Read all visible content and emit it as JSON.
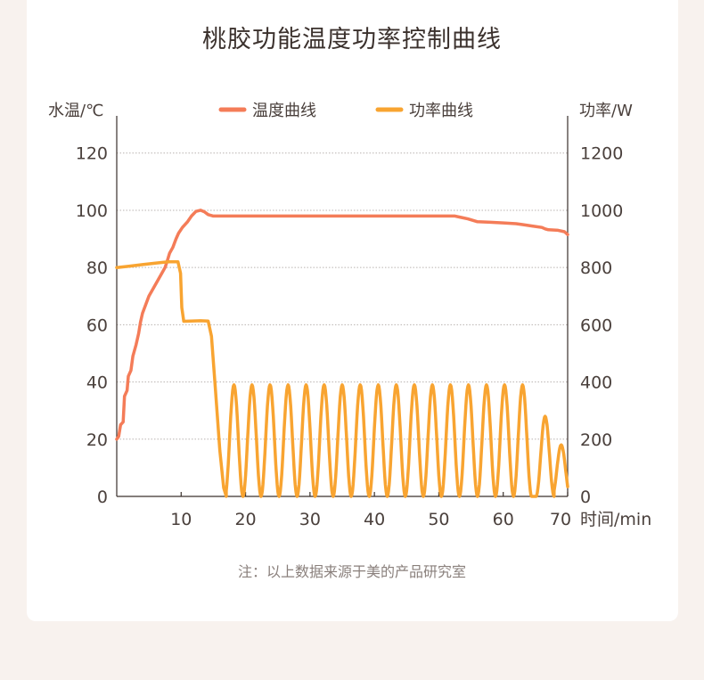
{
  "chart_data": {
    "type": "line",
    "title": "桃胶功能温度功率控制曲线",
    "y_left_label": "水温/℃",
    "y_right_label": "功率/W",
    "x_unit_label": "时间/min",
    "note": "注：以上数据来源于美的产品研究室",
    "x_range": [
      0,
      70
    ],
    "y_left_range": [
      0,
      133
    ],
    "y_right_range": [
      0,
      1330
    ],
    "x_ticks": [
      10,
      20,
      30,
      40,
      50,
      60,
      70
    ],
    "y_left_ticks": [
      0,
      20,
      40,
      60,
      80,
      100,
      120
    ],
    "y_right_ticks": [
      0,
      200,
      400,
      600,
      800,
      1000,
      1200
    ],
    "grid": true,
    "legend_position": "top-center",
    "series": [
      {
        "name": "温度曲线",
        "axis": "left",
        "color": "#f47c58",
        "points": [
          [
            0.0,
            20
          ],
          [
            0.3,
            21
          ],
          [
            0.6,
            25
          ],
          [
            1.0,
            26
          ],
          [
            1.2,
            35
          ],
          [
            1.6,
            37
          ],
          [
            1.8,
            42
          ],
          [
            2.2,
            44
          ],
          [
            2.5,
            49
          ],
          [
            3.0,
            53
          ],
          [
            3.4,
            57
          ],
          [
            3.7,
            61
          ],
          [
            4.0,
            64
          ],
          [
            4.5,
            67
          ],
          [
            5.0,
            70
          ],
          [
            5.5,
            72
          ],
          [
            6.0,
            74
          ],
          [
            6.5,
            76
          ],
          [
            7.0,
            78
          ],
          [
            7.5,
            80
          ],
          [
            7.8,
            82
          ],
          [
            8.2,
            85
          ],
          [
            8.7,
            87
          ],
          [
            9.2,
            90
          ],
          [
            9.6,
            92
          ],
          [
            10.2,
            94
          ],
          [
            11.0,
            96
          ],
          [
            11.6,
            98
          ],
          [
            12.3,
            99.6
          ],
          [
            13.0,
            100
          ],
          [
            13.6,
            99.5
          ],
          [
            14.2,
            98.5
          ],
          [
            15.0,
            98
          ],
          [
            20,
            98
          ],
          [
            30,
            98
          ],
          [
            40,
            98
          ],
          [
            50,
            98
          ],
          [
            52.5,
            98
          ],
          [
            53.5,
            97.5
          ],
          [
            54.5,
            97
          ],
          [
            56,
            96
          ],
          [
            58,
            95.8
          ],
          [
            60,
            95.6
          ],
          [
            62,
            95.3
          ],
          [
            63,
            95
          ],
          [
            64.5,
            94.5
          ],
          [
            66,
            94
          ],
          [
            66.5,
            93.5
          ],
          [
            67,
            93.2
          ],
          [
            68.5,
            93
          ],
          [
            69.5,
            92.5
          ],
          [
            70,
            91.5
          ]
        ]
      },
      {
        "name": "功率曲线",
        "axis": "right",
        "color": "#f8a431",
        "points": [
          [
            0,
            800
          ],
          [
            2,
            805
          ],
          [
            4,
            810
          ],
          [
            6,
            815
          ],
          [
            8,
            820
          ],
          [
            9.5,
            820
          ],
          [
            9.9,
            780
          ],
          [
            10.1,
            660
          ],
          [
            10.4,
            612
          ],
          [
            11.5,
            613
          ],
          [
            13,
            614
          ],
          [
            14.2,
            613
          ],
          [
            14.7,
            560
          ],
          [
            15.3,
            380
          ],
          [
            16,
            160
          ],
          [
            16.6,
            30
          ],
          [
            17.0,
            0
          ]
        ],
        "oscillation": {
          "peak_times": [
            18.2,
            21.0,
            23.8,
            26.6,
            29.4,
            32.2,
            35.0,
            37.8,
            40.6,
            43.4,
            46.2,
            49.0,
            51.8,
            54.6,
            57.4,
            60.2,
            63.0,
            66.5,
            69.0
          ],
          "peak_values": [
            390,
            390,
            390,
            390,
            390,
            390,
            390,
            390,
            390,
            390,
            390,
            390,
            390,
            390,
            390,
            390,
            390,
            280,
            180
          ],
          "half_period": 1.4,
          "end_time": 70
        }
      }
    ]
  }
}
